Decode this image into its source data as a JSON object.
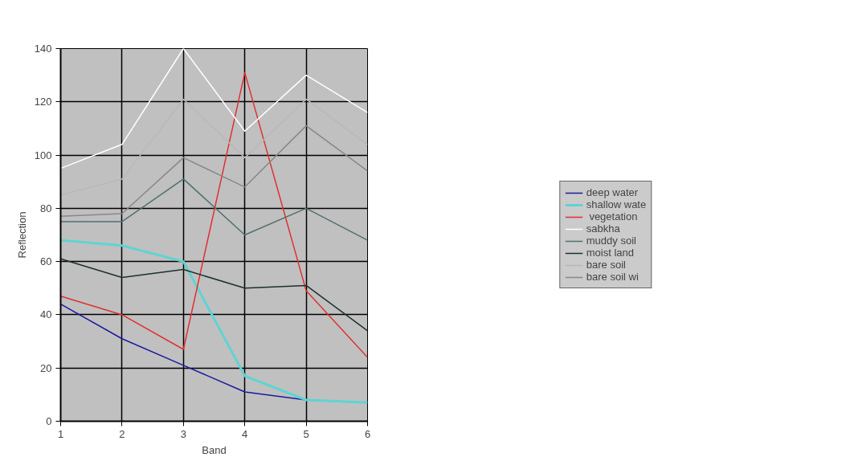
{
  "chart_data": {
    "type": "line",
    "xlabel": "Band",
    "ylabel": "Reflection",
    "x": [
      1,
      2,
      3,
      4,
      5,
      6
    ],
    "xlim": [
      1,
      6
    ],
    "xticks": [
      1,
      2,
      3,
      4,
      5,
      6
    ],
    "ylim": [
      0,
      140
    ],
    "yticks": [
      0,
      20,
      40,
      60,
      80,
      100,
      120,
      140
    ],
    "grid": true,
    "legend": "right",
    "marker": "none",
    "line_style": "solid",
    "series": [
      {
        "name": "deep water",
        "color": "#1a1aa0",
        "values": [
          44,
          31,
          21,
          11,
          8,
          7
        ]
      },
      {
        "name": "shallow wate",
        "color": "#5fd3d3",
        "values": [
          68,
          66,
          60,
          17,
          8,
          7
        ]
      },
      {
        "name": " vegetation",
        "color": "#e03030",
        "values": [
          47,
          40,
          27,
          131,
          49,
          24
        ]
      },
      {
        "name": "sabkha",
        "color": "#ffffff",
        "values": [
          95,
          104,
          140,
          109,
          130,
          116
        ]
      },
      {
        "name": "muddy soil",
        "color": "#4f7070",
        "values": [
          75,
          75,
          91,
          70,
          80,
          68
        ]
      },
      {
        "name": "moist land",
        "color": "#1f3030",
        "values": [
          61,
          54,
          57,
          50,
          51,
          34
        ]
      },
      {
        "name": "bare soil",
        "color": "#b8b8b8",
        "values": [
          85,
          91,
          121,
          99,
          121,
          104
        ]
      },
      {
        "name": "bare soil wi",
        "color": "#888888",
        "values": [
          77,
          78,
          99,
          88,
          111,
          94
        ]
      }
    ]
  }
}
